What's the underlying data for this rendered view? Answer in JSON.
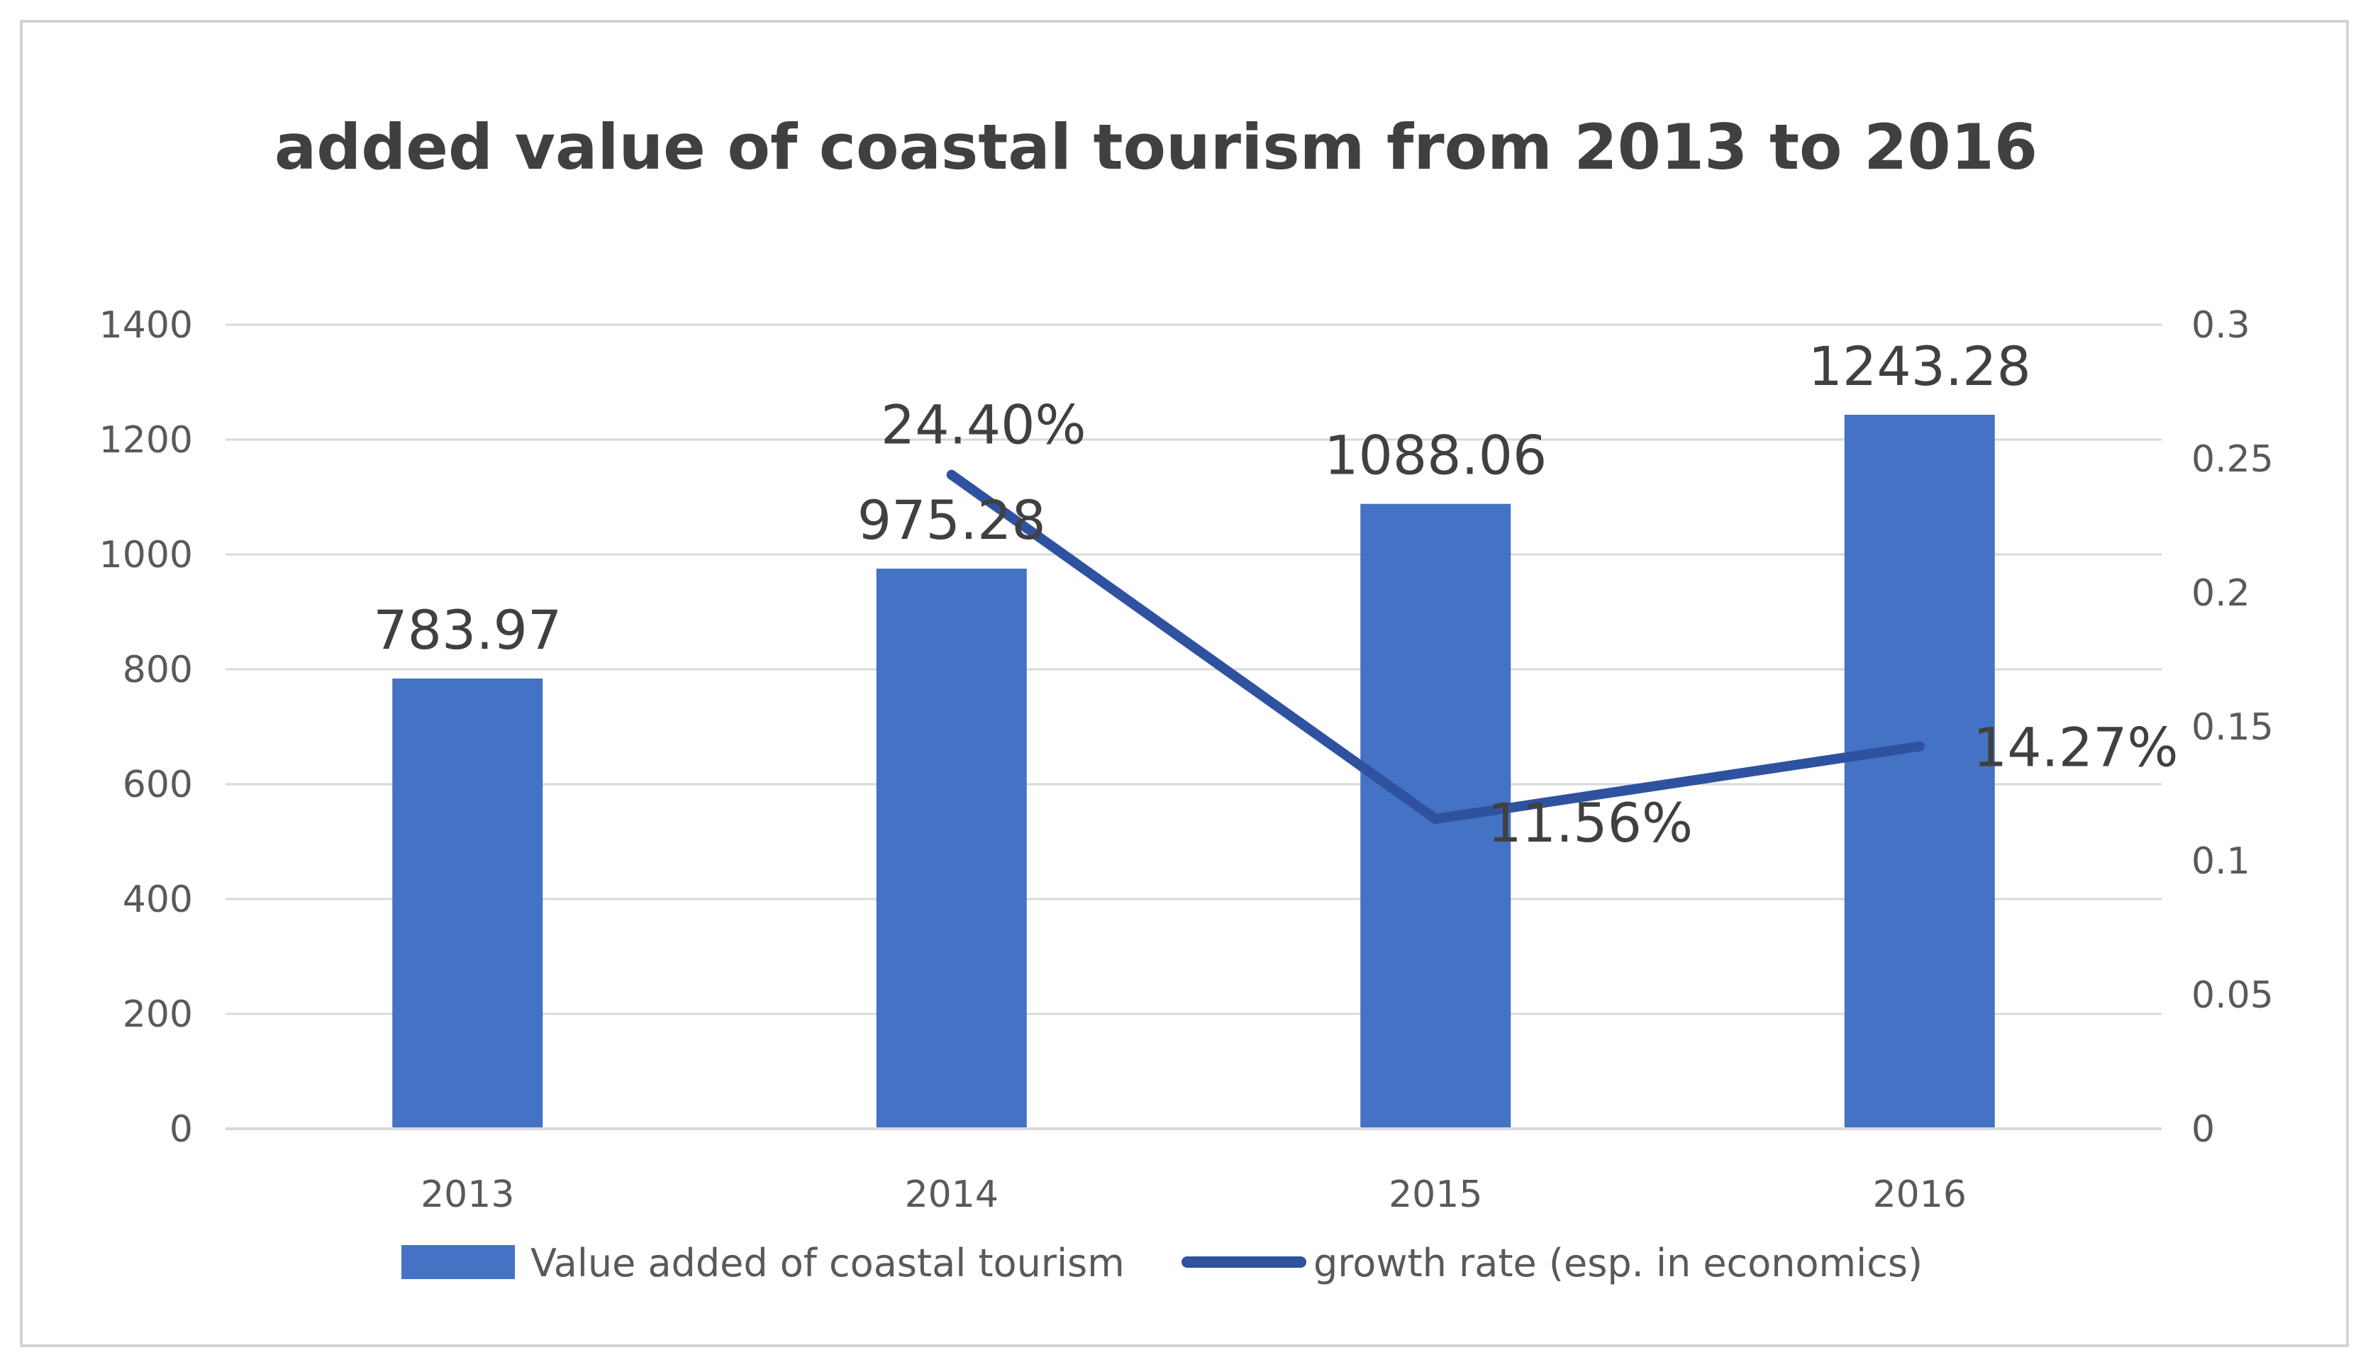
{
  "chart_data": {
    "type": "bar",
    "title": "added value of coastal tourism from 2013 to 2016",
    "categories": [
      "2013",
      "2014",
      "2015",
      "2016"
    ],
    "xlabel": "",
    "ylabel": "",
    "grid": true,
    "legend_position": "bottom",
    "y_left": {
      "min": 0,
      "max": 1400,
      "ticks": [
        "0",
        "200",
        "400",
        "600",
        "800",
        "1000",
        "1200",
        "1400"
      ]
    },
    "y_right": {
      "min": 0,
      "max": 0.3,
      "ticks": [
        "0",
        "0.05",
        "0.1",
        "0.15",
        "0.2",
        "0.25",
        "0.3"
      ]
    },
    "series": [
      {
        "name": "Value added of coastal tourism",
        "type": "bar",
        "axis": "left",
        "color": "#4472C4",
        "values": [
          783.97,
          975.28,
          1088.06,
          1243.28
        ],
        "labels": [
          "783.97",
          "975.28",
          "1088.06",
          "1243.28"
        ]
      },
      {
        "name": "growth rate (esp. in economics)",
        "type": "line",
        "axis": "right",
        "color": "#2F52A0",
        "values": [
          null,
          0.244,
          0.1156,
          0.1427
        ],
        "labels": [
          "",
          "24.40%",
          "11.56%",
          "14.27%"
        ]
      }
    ]
  }
}
